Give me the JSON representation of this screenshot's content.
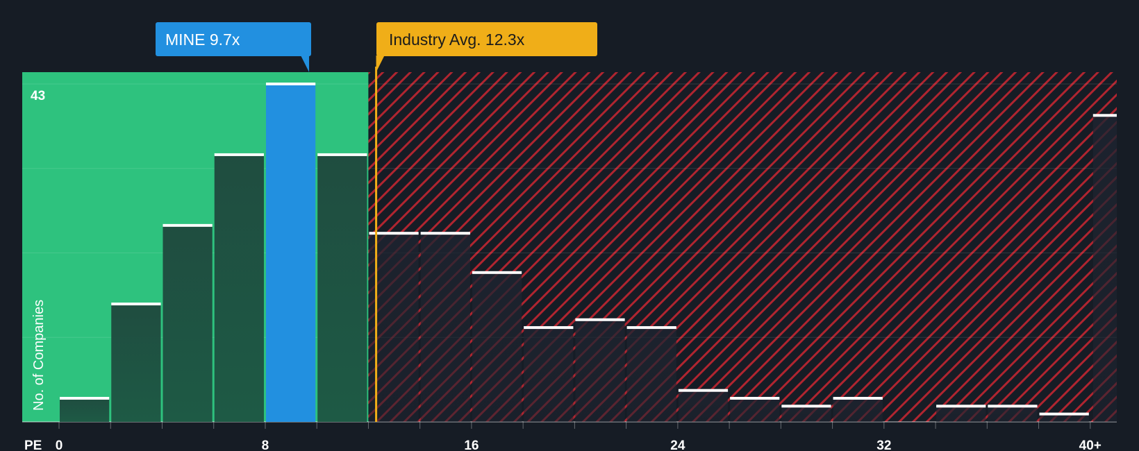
{
  "chart_data": {
    "type": "bar",
    "title": "",
    "xlabel": "PE",
    "ylabel": "No. of Companies",
    "categories": [
      "0-2",
      "2-4",
      "4-6",
      "6-8",
      "8-10",
      "10-12",
      "12-14",
      "14-16",
      "16-18",
      "18-20",
      "20-22",
      "22-24",
      "24-26",
      "26-28",
      "28-30",
      "30-32",
      "32-34",
      "34-36",
      "36-38",
      "38-40",
      "40+"
    ],
    "values": [
      3,
      15,
      25,
      34,
      43,
      34,
      24,
      24,
      19,
      12,
      13,
      12,
      4,
      3,
      2,
      3,
      0,
      2,
      2,
      1,
      39
    ],
    "xticks": [
      {
        "label": "0",
        "value": 0
      },
      {
        "label": "8",
        "value": 8
      },
      {
        "label": "16",
        "value": 16
      },
      {
        "label": "24",
        "value": 24
      },
      {
        "label": "32",
        "value": 32
      },
      {
        "label": "40+",
        "value": 40
      }
    ],
    "ymax_label": "43",
    "ylim": [
      0,
      43
    ],
    "fair_value_max": 12,
    "company": {
      "label": "MINE 9.7x",
      "value": 9.7,
      "bin_index": 4
    },
    "industry": {
      "label": "Industry Avg. 12.3x",
      "value": 12.3
    },
    "colors": {
      "background": "#161c25",
      "fair_zone": "#2ec27e",
      "company_bar": "#2290e0",
      "industry_line": "#f0ae18",
      "overvalued_zone": "#b02530",
      "bar_cap": "#ffffff"
    }
  }
}
